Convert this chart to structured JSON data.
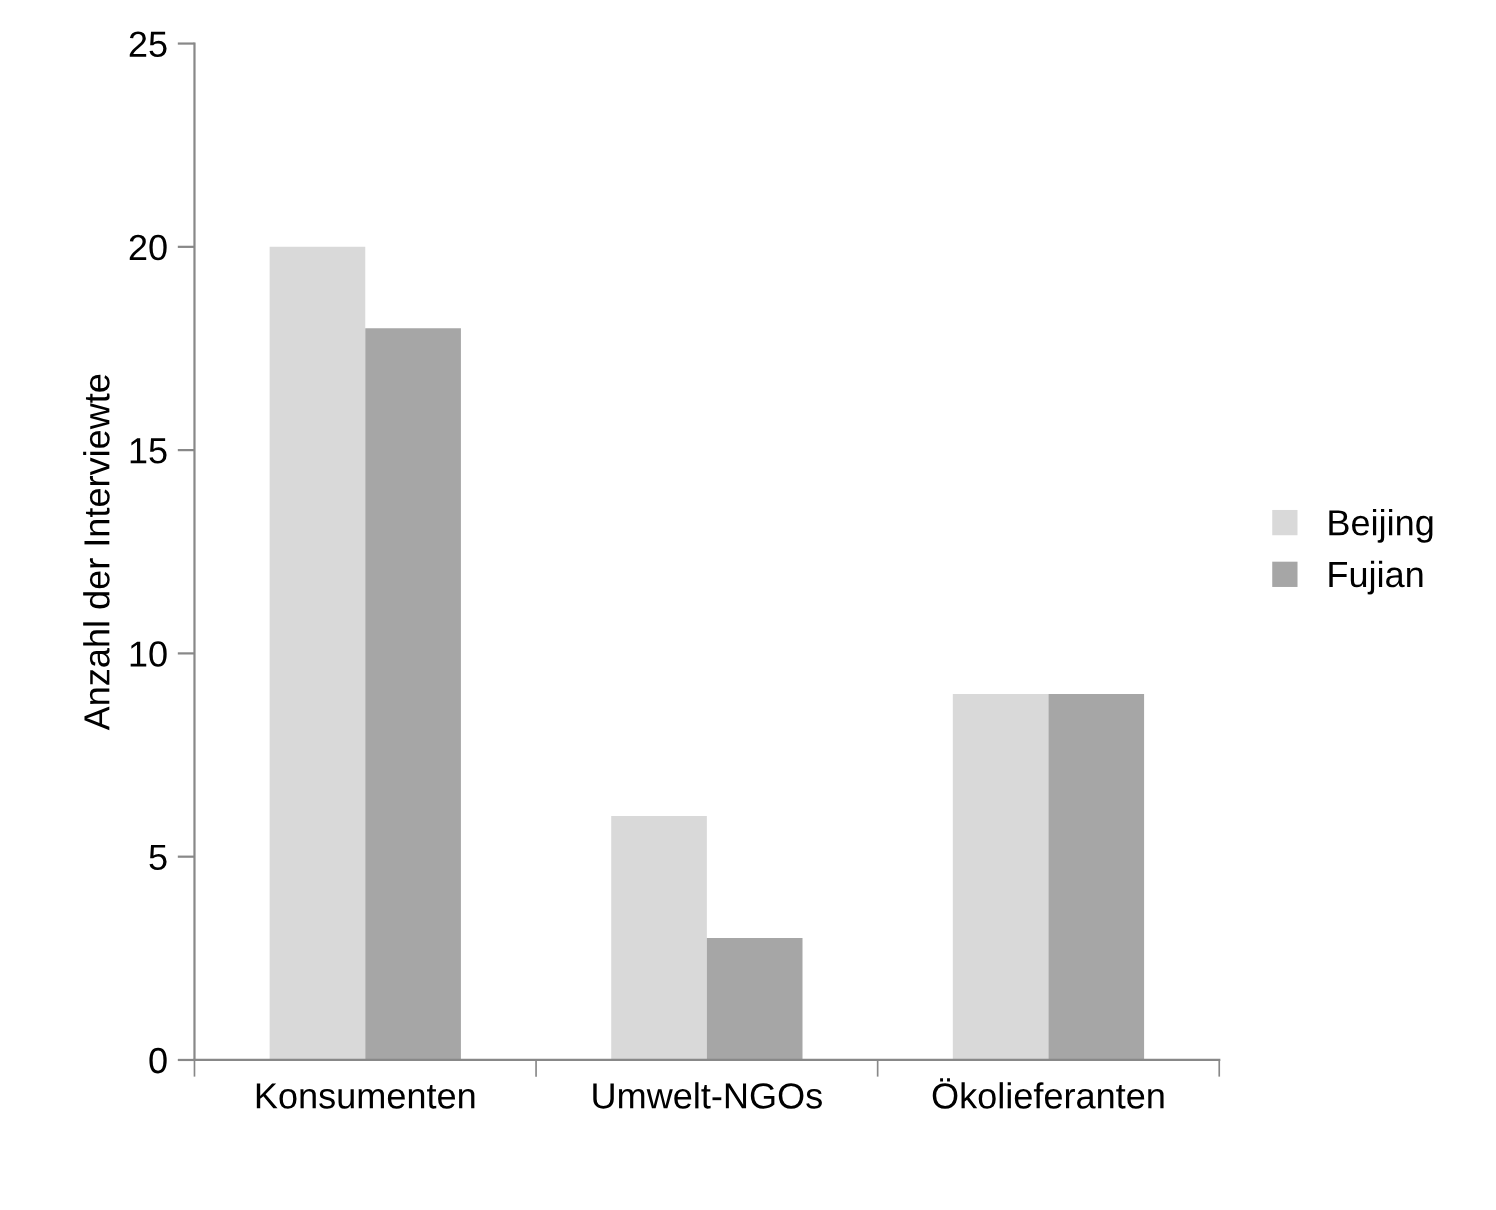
{
  "chart_data": {
    "type": "bar",
    "ylabel": "Anzahl der Interviewte",
    "categories": [
      "Konsumenten",
      "Umwelt-NGOs",
      "Ökolieferanten"
    ],
    "series": [
      {
        "name": "Beijing",
        "color": "#d9d9d9",
        "values": [
          20,
          6,
          9
        ]
      },
      {
        "name": "Fujian",
        "color": "#a6a6a6",
        "values": [
          18,
          3,
          9
        ]
      }
    ],
    "ylim": [
      0,
      25
    ],
    "yticks": [
      0,
      5,
      10,
      15,
      20,
      25
    ],
    "grid": false,
    "legend": "right"
  }
}
